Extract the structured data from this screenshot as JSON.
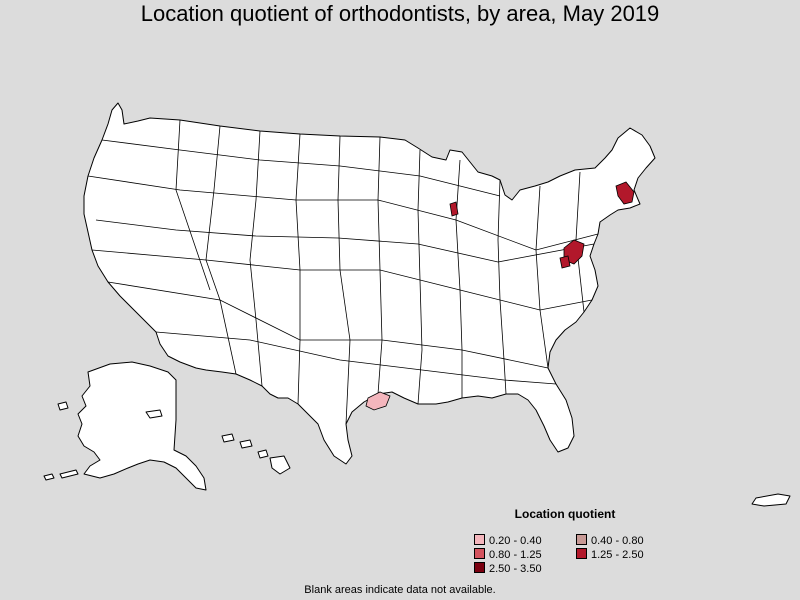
{
  "title": "Location quotient of orthodontists, by area, May 2019",
  "legend": {
    "title": "Location quotient",
    "items": [
      {
        "label": "0.20 - 0.40",
        "color": "#f4b6bd"
      },
      {
        "label": "0.40 - 0.80",
        "color": "#c89a96"
      },
      {
        "label": "0.80 - 1.25",
        "color": "#d3535e"
      },
      {
        "label": "1.25 - 2.50",
        "color": "#b2182b"
      },
      {
        "label": "2.50 - 3.50",
        "color": "#7a0010"
      }
    ]
  },
  "note": "Blank areas indicate data not available.",
  "colors": {
    "background": "#dcdcdc",
    "area_fill": "#ffffff",
    "border": "#000000"
  }
}
